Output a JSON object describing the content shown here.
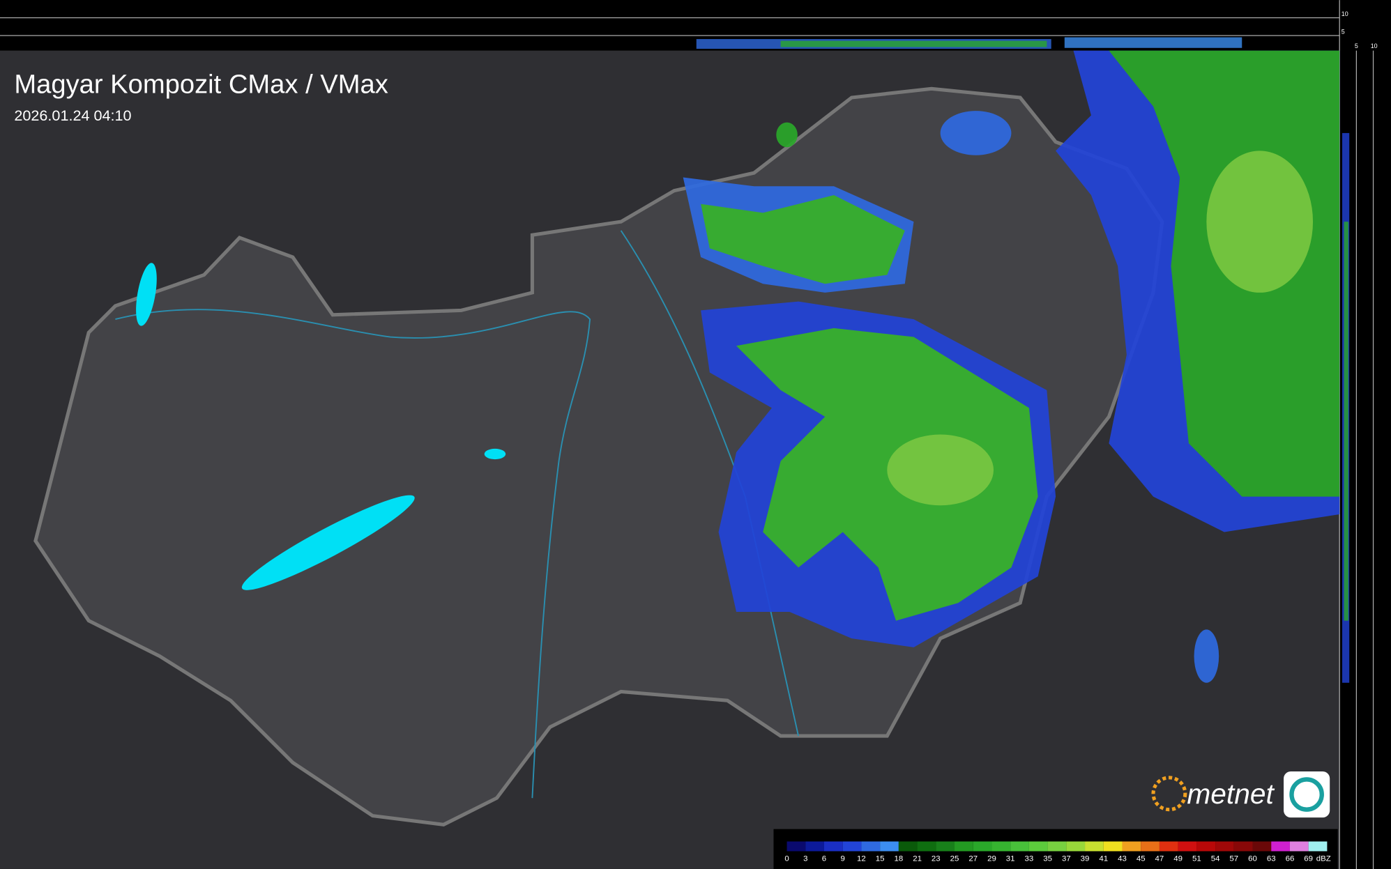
{
  "header": {
    "title": "Magyar Kompozit CMax / VMax",
    "timestamp": "2026.01.24 04:10"
  },
  "side_scale": {
    "top_labels": [
      10,
      5
    ],
    "bottom_labels": [
      5,
      10
    ]
  },
  "legend": {
    "levels": [
      0,
      3,
      6,
      9,
      12,
      15,
      18,
      21,
      23,
      25,
      27,
      29,
      31,
      33,
      35,
      37,
      39,
      41,
      43,
      45,
      47,
      49,
      51,
      54,
      57,
      60,
      63,
      66,
      69
    ],
    "colors": [
      "#0a0a6e",
      "#0c1a9a",
      "#1a2fc4",
      "#2244d8",
      "#2f6ae0",
      "#3c8ef0",
      "#0a5a0a",
      "#0f6e10",
      "#18801a",
      "#239a22",
      "#2aa82a",
      "#36b430",
      "#48c03a",
      "#5ccb3c",
      "#78d040",
      "#98d83a",
      "#c8e030",
      "#f0e020",
      "#f0a020",
      "#e87018",
      "#e03010",
      "#d01010",
      "#b80808",
      "#a00808",
      "#880808",
      "#6a0808",
      "#d020d0",
      "#e080e0",
      "#a0f0f0"
    ],
    "unit": "dBZ"
  },
  "logo": {
    "text": "metnet"
  }
}
